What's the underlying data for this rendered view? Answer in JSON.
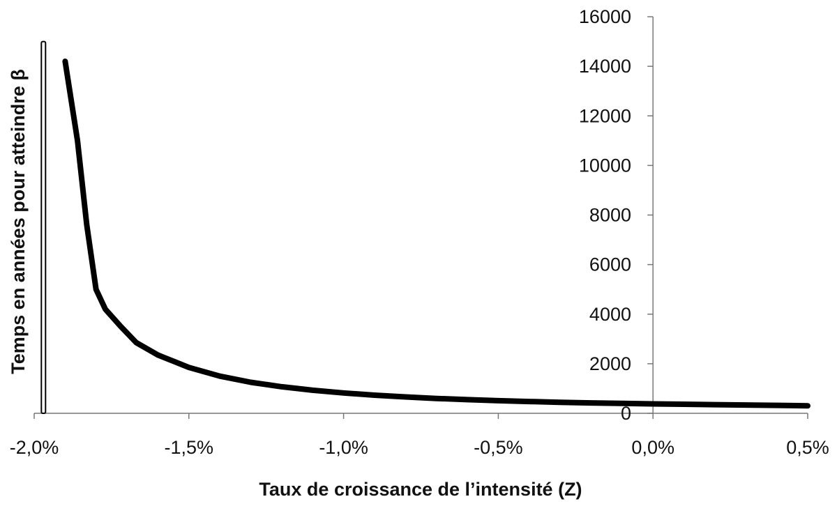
{
  "chart_data": {
    "type": "line",
    "title": "",
    "xlabel": "Taux de croissance de l’intensité (Z)",
    "ylabel": "Temps en années pour atteindre β",
    "xlim": [
      -0.02,
      0.005
    ],
    "ylim": [
      0,
      16000
    ],
    "x_ticks": [
      -0.02,
      -0.015,
      -0.01,
      -0.005,
      0.0,
      0.005
    ],
    "x_tick_labels": [
      "-2,0%",
      "-1,5%",
      "-1,0%",
      "-0,5%",
      "0,0%",
      "0,5%"
    ],
    "y_ticks": [
      0,
      2000,
      4000,
      6000,
      8000,
      10000,
      12000,
      14000,
      16000
    ],
    "y_tick_labels": [
      "0",
      "2000",
      "4000",
      "6000",
      "8000",
      "10000",
      "12000",
      "14000",
      "16000"
    ],
    "y_axis_position": "at x = 0",
    "asymptote_x": -0.0197,
    "grid": false,
    "line_color": "#000000",
    "series": [
      {
        "x": [
          -0.019,
          -0.0186,
          -0.0183,
          -0.018,
          -0.0177,
          -0.0172,
          -0.0167,
          -0.016,
          -0.015,
          -0.014,
          -0.013,
          -0.012,
          -0.011,
          -0.01,
          -0.009,
          -0.008,
          -0.007,
          -0.006,
          -0.005,
          -0.004,
          -0.003,
          -0.002,
          -0.001,
          0.0,
          0.001,
          0.002,
          0.003,
          0.004,
          0.005
        ],
        "y": [
          14200,
          11000,
          7600,
          5000,
          4200,
          3500,
          2850,
          2350,
          1850,
          1500,
          1250,
          1070,
          930,
          820,
          730,
          660,
          600,
          550,
          510,
          475,
          445,
          420,
          400,
          380,
          365,
          350,
          335,
          320,
          305
        ]
      }
    ]
  }
}
